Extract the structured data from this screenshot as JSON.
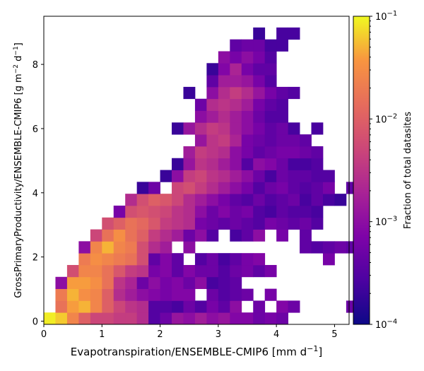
{
  "chart_data": {
    "type": "heatmap",
    "xlabel": "Evapotranspiration/ENSEMBLE-CMIP6 [mm d",
    "xlabel_sup": "−1",
    "xlabel_end": "]",
    "ylabel_main": "GrossPrimaryProductivity/ENSEMBLE-CMIP6 [g m",
    "ylabel_sup1": "−2",
    "ylabel_mid": " d",
    "ylabel_sup2": "−1",
    "ylabel_end": "]",
    "xlim": [
      0,
      5.25
    ],
    "ylim": [
      -0.1,
      9.5
    ],
    "x_ticks": [
      0,
      1,
      2,
      3,
      4,
      5
    ],
    "y_ticks": [
      0,
      2,
      4,
      6,
      8
    ],
    "x_bin_width": 0.2,
    "y_bin_width": 0.37,
    "colormap": "plasma",
    "colorbar": {
      "label": "Fraction of total datasites",
      "scale": "log",
      "range": [
        0.0001,
        0.1
      ],
      "ticks": [
        {
          "value": 0.1,
          "base": "10",
          "exp": "−1"
        },
        {
          "value": 0.01,
          "base": "10",
          "exp": "−2"
        },
        {
          "value": 0.001,
          "base": "10",
          "exp": "−3"
        },
        {
          "value": 0.0001,
          "base": "10",
          "exp": "−4"
        }
      ]
    },
    "bins_note": "each row: y bin index (0 = lowest, spacing y_bin_width) with log10 fraction for consecutive x bins starting at column 'start' (null = empty)",
    "rows": [
      {
        "y": 0,
        "start": 0,
        "v": [
          -1.05,
          -1.2,
          -1.6,
          -2.0,
          -2.3,
          -2.3,
          -2.4,
          -2.4,
          -2.6,
          -3.5,
          -3.3,
          -2.9,
          -3.0,
          -2.8,
          -3.0,
          -2.9,
          -3.1,
          -3.1,
          -3.3,
          -3.2,
          -3.3
        ]
      },
      {
        "y": 1,
        "start": 0,
        "v": [
          null,
          -1.8,
          -1.4,
          -1.3,
          -1.6,
          -2.0,
          -2.3,
          -2.5,
          -2.6,
          -3.5,
          -3.5,
          -3.6,
          -3.3,
          -3.5,
          -3.2,
          -3.4,
          -3.0,
          null,
          -3.3,
          null,
          -3.1,
          -3.3,
          null,
          null,
          null,
          null,
          -3.3
        ]
      },
      {
        "y": 2,
        "start": 1,
        "v": [
          -1.7,
          -1.3,
          -1.5,
          -1.6,
          -2.0,
          -2.6,
          -2.8,
          -3.0,
          -3.1,
          -3.2,
          -3.1,
          -3.1,
          null,
          -3.3,
          -3.5,
          -3.4,
          -3.3,
          null,
          -3.2
        ]
      },
      {
        "y": 3,
        "start": 1,
        "v": [
          -3.0,
          -1.4,
          -1.4,
          -1.5,
          -1.8,
          -2.5,
          -2.7,
          -3.3,
          -3.0,
          -3.2,
          -3.1,
          -3.3,
          -3.0,
          -3.6,
          -3.5,
          -3.4,
          null,
          null,
          null,
          null,
          null,
          null,
          null,
          null,
          null,
          null,
          -3.2
        ]
      },
      {
        "y": 4,
        "start": 2,
        "v": [
          -2.2,
          -1.6,
          -1.6,
          -1.8,
          -2.1,
          -2.4,
          -2.5,
          -3.2,
          -3.1,
          -3.4,
          -3.1,
          -3.3,
          -3.3,
          -3.5,
          -3.3,
          -3.2,
          -3.4,
          -3.2
        ]
      },
      {
        "y": 5,
        "start": 3,
        "v": [
          -1.7,
          -1.5,
          -1.6,
          -1.7,
          -1.8,
          -2.2,
          -3.4,
          -3.1,
          -3.4,
          null,
          -3.5,
          -3.3,
          -3.6,
          -3.4,
          -3.2,
          -3.1,
          null,
          null,
          null,
          null,
          null,
          -3.2
        ]
      },
      {
        "y": 6,
        "start": 3,
        "v": [
          -3.0,
          -1.6,
          -1.3,
          -1.6,
          -1.7,
          -2.2,
          -2.6,
          -2.8,
          null,
          -3.0,
          null,
          null,
          null,
          null,
          null,
          null,
          null,
          null,
          null,
          -3.4,
          -3.5,
          -3.4,
          -3.3,
          -3.4
        ]
      },
      {
        "y": 7,
        "start": 4,
        "v": [
          -2.3,
          -1.8,
          -1.5,
          -1.8,
          -2.0,
          -2.4,
          -2.6,
          -2.8,
          -3.3,
          -3.0,
          -3.5,
          null,
          -3.6,
          -3.4,
          -3.0,
          null,
          -3.2,
          null,
          -3.4
        ]
      },
      {
        "y": 8,
        "start": 5,
        "v": [
          -2.2,
          -2.0,
          -1.8,
          -1.9,
          -2.1,
          -2.4,
          -2.5,
          -2.6,
          -3.2,
          -3.3,
          -3.4,
          -3.3,
          -3.4,
          -3.5,
          -3.2,
          -3.3,
          -3.4,
          -3.3,
          -3.5
        ]
      },
      {
        "y": 9,
        "start": 6,
        "v": [
          -3.2,
          -2.2,
          -2.1,
          -2.2,
          -2.3,
          -2.5,
          -2.6,
          -3.0,
          -3.3,
          -3.1,
          -3.3,
          -3.2,
          -3.5,
          -3.6,
          -3.4,
          -3.5,
          -3.5,
          -3.6
        ]
      },
      {
        "y": 10,
        "start": 7,
        "v": [
          -2.6,
          -2.2,
          -2.0,
          -2.1,
          -2.3,
          -2.6,
          -2.8,
          -3.0,
          -3.2,
          -3.4,
          -3.5,
          -3.3,
          -3.5,
          -3.4,
          -3.3,
          -3.6,
          -3.4,
          -3.6,
          -3.7
        ]
      },
      {
        "y": 11,
        "start": 8,
        "v": [
          -3.7,
          -3.3,
          null,
          -2.3,
          -2.2,
          -2.4,
          -2.6,
          -2.8,
          -3.0,
          -3.2,
          -3.5,
          -3.3,
          -3.2,
          -3.4,
          -3.5,
          -3.4,
          -3.2,
          null,
          -3.4
        ]
      },
      {
        "y": 12,
        "start": 10,
        "v": [
          -3.7,
          -3.0,
          -2.4,
          -2.3,
          -2.5,
          -2.6,
          -2.8,
          -3.0,
          -3.3,
          -3.6,
          -3.3,
          -3.4,
          -3.4,
          -3.5,
          -3.5
        ]
      },
      {
        "y": 13,
        "start": 11,
        "v": [
          -3.7,
          -2.9,
          -2.5,
          -2.6,
          -2.8,
          -3.0,
          -3.5,
          -3.0,
          -3.1,
          -3.3,
          -3.6,
          -3.6,
          -3.5
        ]
      },
      {
        "y": 14,
        "start": 11,
        "v": [
          null,
          -2.8,
          -2.4,
          -2.5,
          -2.6,
          -3.0,
          -3.2,
          -3.4,
          -3.3,
          -3.2,
          -3.2,
          -3.3,
          -3.4
        ]
      },
      {
        "y": 15,
        "start": 11,
        "v": [
          null,
          null,
          -2.9,
          -2.5,
          -2.4,
          -2.7,
          -3.2,
          -3.3,
          -3.4,
          -3.3,
          -3.3,
          -3.4
        ]
      },
      {
        "y": 16,
        "start": 11,
        "v": [
          -3.7,
          -2.9,
          -2.6,
          -2.4,
          -2.5,
          -2.8,
          -3.0,
          -3.2,
          -3.4,
          -3.3,
          -3.6,
          null,
          -3.6
        ]
      },
      {
        "y": 17,
        "start": 13,
        "v": [
          -3.0,
          -2.8,
          -2.6,
          -2.8,
          -3.0,
          -3.3,
          -3.5,
          -3.5
        ]
      },
      {
        "y": 18,
        "start": 13,
        "v": [
          -3.3,
          -2.6,
          -2.5,
          -2.6,
          -2.8,
          -3.2,
          -3.4,
          -3.5
        ]
      },
      {
        "y": 19,
        "start": 12,
        "v": [
          -3.7,
          null,
          -3.0,
          -2.6,
          -2.4,
          -2.6,
          -2.9,
          -3.2,
          -3.4,
          -3.5
        ]
      },
      {
        "y": 20,
        "start": 14,
        "v": [
          -3.4,
          -2.8,
          -2.8,
          -2.9,
          -3.2,
          -3.5
        ]
      },
      {
        "y": 21,
        "start": 14,
        "v": [
          -3.7,
          -3.1,
          -2.7,
          -3.2,
          -3.4,
          -3.4
        ]
      },
      {
        "y": 22,
        "start": 15,
        "v": [
          -3.0,
          -3.2,
          -3.0,
          -3.2,
          -3.5
        ]
      },
      {
        "y": 23,
        "start": 16,
        "v": [
          -3.4,
          -3.3,
          -3.3,
          -3.6,
          -3.6
        ]
      },
      {
        "y": 24,
        "start": 18,
        "v": [
          -3.7,
          null,
          -3.6,
          -3.6
        ]
      }
    ]
  }
}
